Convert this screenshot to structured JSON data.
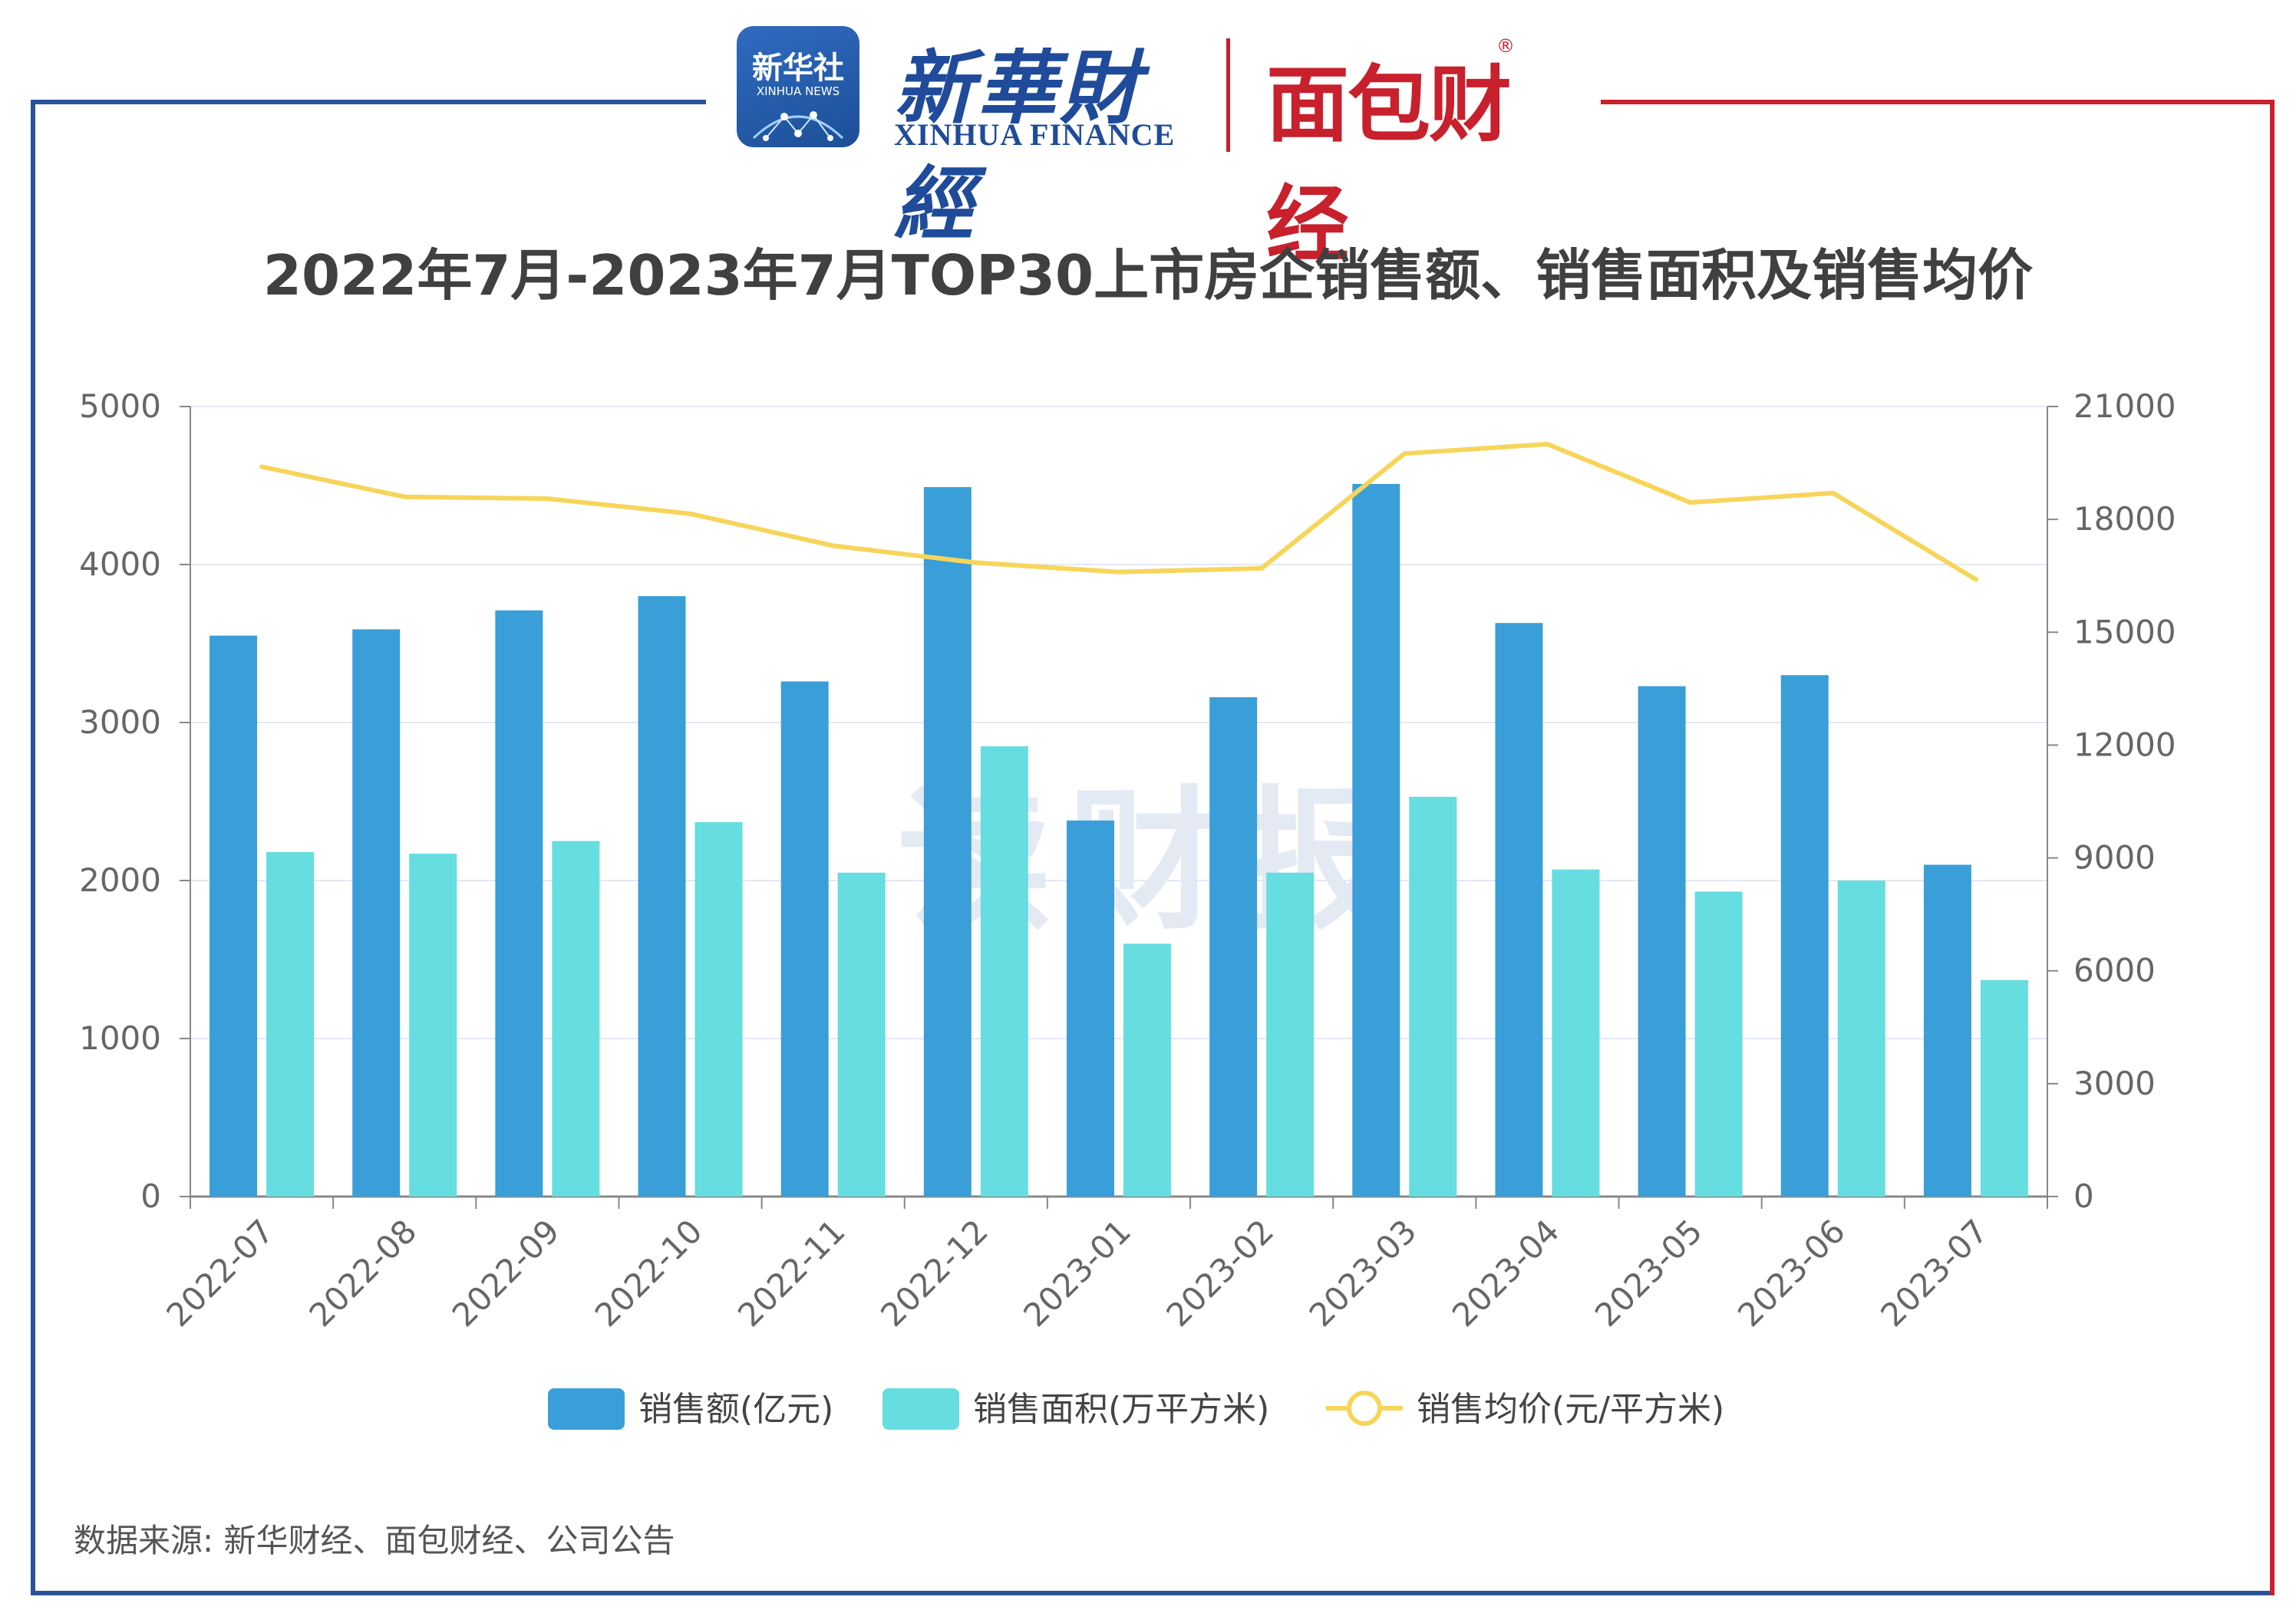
{
  "header": {
    "news_logo_cn": "新华社",
    "news_logo_en": "XINHUA NEWS",
    "finance_logo_cn": "新華財經",
    "finance_logo_en": "XINHUA FINANCE",
    "bread_logo_cn": "面包财经",
    "bread_logo_reg": "®"
  },
  "watermark": "读财报",
  "source": "数据来源: 新华财经、面包财经、公司公告",
  "colors": {
    "sales_amount": "#3a9fd8",
    "sales_area": "#66dde0",
    "avg_price": "#f7d55a",
    "frame_blue": "#2a5298",
    "frame_red": "#c8202c"
  },
  "chart_data": {
    "type": "bar",
    "title": "2022年7月-2023年7月TOP30上市房企销售额、销售面积及销售均价",
    "categories": [
      "2022-07",
      "2022-08",
      "2022-09",
      "2022-10",
      "2022-11",
      "2022-12",
      "2023-01",
      "2023-02",
      "2023-03",
      "2023-04",
      "2023-05",
      "2023-06",
      "2023-07"
    ],
    "series": [
      {
        "name": "销售额(亿元)",
        "type": "bar",
        "axis": "left",
        "values": [
          3550,
          3590,
          3710,
          3800,
          3260,
          4490,
          2380,
          3160,
          4510,
          3630,
          3230,
          3300,
          2100
        ]
      },
      {
        "name": "销售面积(万平方米)",
        "type": "bar",
        "axis": "left",
        "values": [
          2180,
          2170,
          2250,
          2370,
          2050,
          2850,
          1600,
          2050,
          2530,
          2070,
          1930,
          2000,
          1370
        ]
      },
      {
        "name": "销售均价(元/平方米)",
        "type": "line",
        "axis": "right",
        "values": [
          19400,
          18600,
          18550,
          18150,
          17300,
          16850,
          16600,
          16700,
          19750,
          20000,
          18450,
          18700,
          16400
        ]
      }
    ],
    "y_left": {
      "min": 0,
      "max": 5000,
      "ticks": [
        0,
        1000,
        2000,
        3000,
        4000,
        5000
      ]
    },
    "y_right": {
      "min": 0,
      "max": 21000,
      "ticks": [
        0,
        3000,
        6000,
        9000,
        12000,
        15000,
        18000,
        21000
      ]
    },
    "grid": true,
    "legend_position": "bottom"
  }
}
